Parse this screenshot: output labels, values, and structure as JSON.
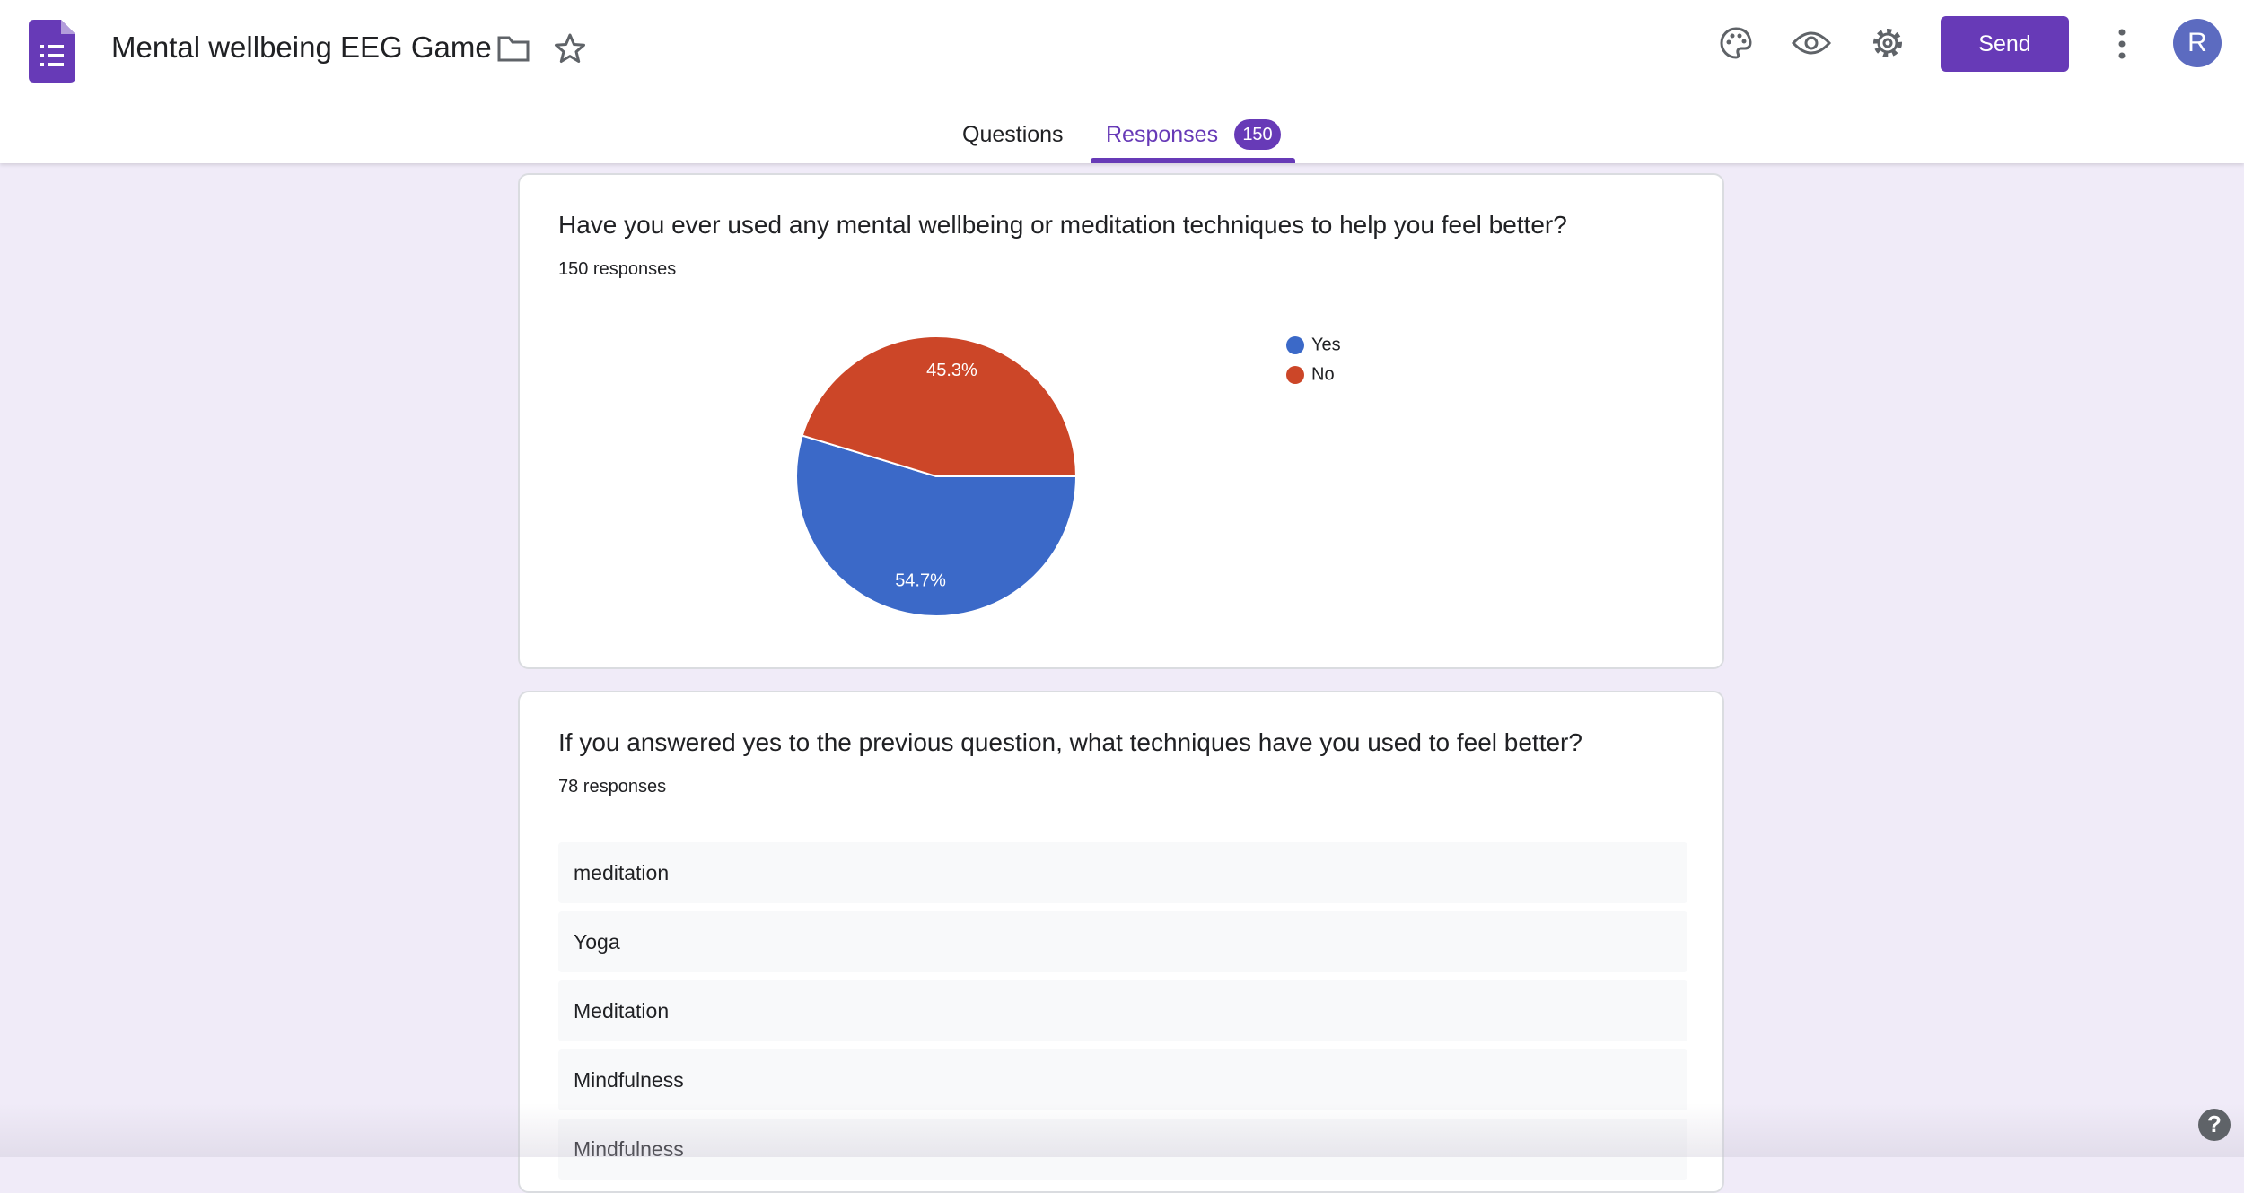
{
  "header": {
    "title": "Mental wellbeing EEG Game",
    "send": "Send",
    "avatar": "R"
  },
  "tabs": {
    "questions": "Questions",
    "responses": "Responses",
    "badge": 150
  },
  "chart_data": {
    "type": "pie",
    "title": "Have you ever used any mental wellbeing or meditation techniques to help you feel better?",
    "subtitle": "150 responses",
    "categories": [
      "Yes",
      "No"
    ],
    "values": [
      54.7,
      45.3
    ],
    "value_labels": [
      "54.7%",
      "45.3%"
    ],
    "colors": [
      "#3b69c8",
      "#cc4628"
    ],
    "legend": "right"
  },
  "question2": {
    "title": "If you answered yes to the previous question, what techniques have you used to feel better?",
    "subtitle": "78 responses",
    "responses": [
      "meditation",
      "Yoga",
      "Meditation",
      "Mindfulness",
      "Mindfulness"
    ]
  }
}
